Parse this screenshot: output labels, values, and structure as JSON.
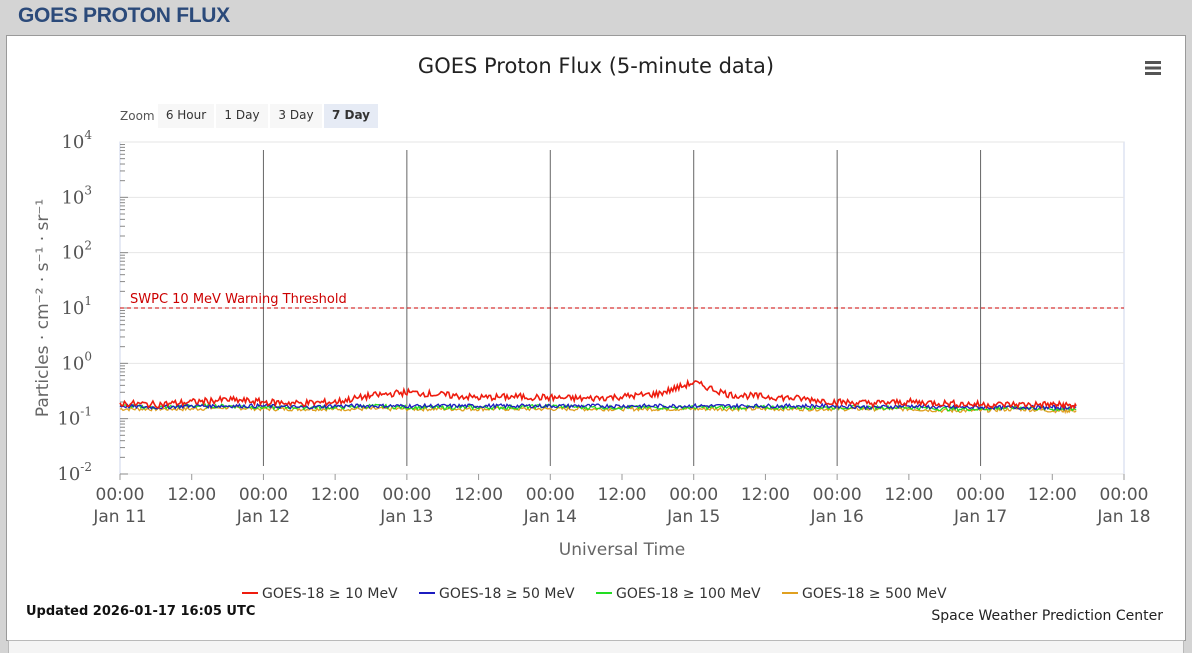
{
  "page": {
    "title": "GOES PROTON FLUX"
  },
  "zoom": {
    "label": "Zoom",
    "buttons": [
      {
        "label": "6 Hour",
        "active": false
      },
      {
        "label": "1 Day",
        "active": false
      },
      {
        "label": "3 Day",
        "active": false
      },
      {
        "label": "7 Day",
        "active": true
      }
    ]
  },
  "menu": {
    "icon": "hamburger-menu-icon"
  },
  "threshold": {
    "label": "SWPC 10 MeV Warning Threshold",
    "value": 10,
    "color": "#cc0000"
  },
  "footer": {
    "updated": "Updated 2026-01-17 16:05 UTC",
    "credit": "Space Weather Prediction Center"
  },
  "chart_data": {
    "type": "line",
    "title": "GOES Proton Flux (5-minute data)",
    "xlabel": "Universal Time",
    "ylabel": "Particles · cm⁻² · s⁻¹ · sr⁻¹",
    "yscale": "log",
    "ylim": [
      0.01,
      10000
    ],
    "y_ticks": [
      {
        "base": "10",
        "exp": "4"
      },
      {
        "base": "10",
        "exp": "3"
      },
      {
        "base": "10",
        "exp": "2"
      },
      {
        "base": "10",
        "exp": "1"
      },
      {
        "base": "10",
        "exp": "0"
      },
      {
        "base": "10",
        "exp": "-1"
      },
      {
        "base": "10",
        "exp": "-2"
      }
    ],
    "x_range": [
      "2026-01-11 00:00",
      "2026-01-18 00:00"
    ],
    "x_ticks": [
      {
        "time": "00:00",
        "date": "Jan 11"
      },
      {
        "time": "12:00",
        "date": ""
      },
      {
        "time": "00:00",
        "date": "Jan 12"
      },
      {
        "time": "12:00",
        "date": ""
      },
      {
        "time": "00:00",
        "date": "Jan 13"
      },
      {
        "time": "12:00",
        "date": ""
      },
      {
        "time": "00:00",
        "date": "Jan 14"
      },
      {
        "time": "12:00",
        "date": ""
      },
      {
        "time": "00:00",
        "date": "Jan 15"
      },
      {
        "time": "12:00",
        "date": ""
      },
      {
        "time": "00:00",
        "date": "Jan 16"
      },
      {
        "time": "12:00",
        "date": ""
      },
      {
        "time": "00:00",
        "date": "Jan 17"
      },
      {
        "time": "12:00",
        "date": ""
      },
      {
        "time": "00:00",
        "date": "Jan 18"
      }
    ],
    "day_lines": [
      "Jan 12",
      "Jan 13",
      "Jan 14",
      "Jan 15",
      "Jan 16",
      "Jan 17"
    ],
    "x_times": [
      "Jan 11 00:00",
      "Jan 11 06:00",
      "Jan 11 12:00",
      "Jan 11 18:00",
      "Jan 12 00:00",
      "Jan 12 06:00",
      "Jan 12 12:00",
      "Jan 12 18:00",
      "Jan 13 00:00",
      "Jan 13 06:00",
      "Jan 13 12:00",
      "Jan 13 18:00",
      "Jan 14 00:00",
      "Jan 14 06:00",
      "Jan 14 12:00",
      "Jan 14 18:00",
      "Jan 15 00:00",
      "Jan 15 06:00",
      "Jan 15 12:00",
      "Jan 15 18:00",
      "Jan 16 00:00",
      "Jan 16 06:00",
      "Jan 16 12:00",
      "Jan 16 18:00",
      "Jan 17 00:00",
      "Jan 17 06:00",
      "Jan 17 12:00",
      "Jan 17 16:00"
    ],
    "series": [
      {
        "name": "GOES-18 ≥ 10 MeV",
        "color": "#ee1c0e",
        "values": [
          0.19,
          0.18,
          0.2,
          0.22,
          0.2,
          0.19,
          0.2,
          0.26,
          0.3,
          0.27,
          0.24,
          0.25,
          0.24,
          0.23,
          0.25,
          0.28,
          0.45,
          0.27,
          0.25,
          0.23,
          0.2,
          0.19,
          0.2,
          0.19,
          0.18,
          0.18,
          0.18,
          0.17
        ]
      },
      {
        "name": "GOES-18 ≥ 50 MeV",
        "color": "#1c1cc0",
        "values": [
          0.17,
          0.16,
          0.17,
          0.17,
          0.17,
          0.16,
          0.17,
          0.17,
          0.17,
          0.17,
          0.17,
          0.17,
          0.17,
          0.17,
          0.17,
          0.17,
          0.17,
          0.17,
          0.17,
          0.17,
          0.17,
          0.16,
          0.17,
          0.16,
          0.16,
          0.16,
          0.16,
          0.16
        ]
      },
      {
        "name": "GOES-18 ≥ 100 MeV",
        "color": "#22dd22",
        "values": [
          0.17,
          0.16,
          0.17,
          0.17,
          0.16,
          0.16,
          0.16,
          0.17,
          0.16,
          0.16,
          0.16,
          0.16,
          0.17,
          0.16,
          0.16,
          0.16,
          0.16,
          0.16,
          0.16,
          0.16,
          0.16,
          0.16,
          0.16,
          0.15,
          0.15,
          0.16,
          0.15,
          0.15
        ]
      },
      {
        "name": "GOES-18 ≥ 500 MeV",
        "color": "#e0a020",
        "values": [
          0.15,
          0.15,
          0.15,
          0.16,
          0.15,
          0.15,
          0.15,
          0.15,
          0.15,
          0.15,
          0.15,
          0.15,
          0.15,
          0.15,
          0.15,
          0.15,
          0.15,
          0.15,
          0.15,
          0.15,
          0.15,
          0.15,
          0.15,
          0.14,
          0.14,
          0.15,
          0.14,
          0.14
        ]
      }
    ]
  }
}
